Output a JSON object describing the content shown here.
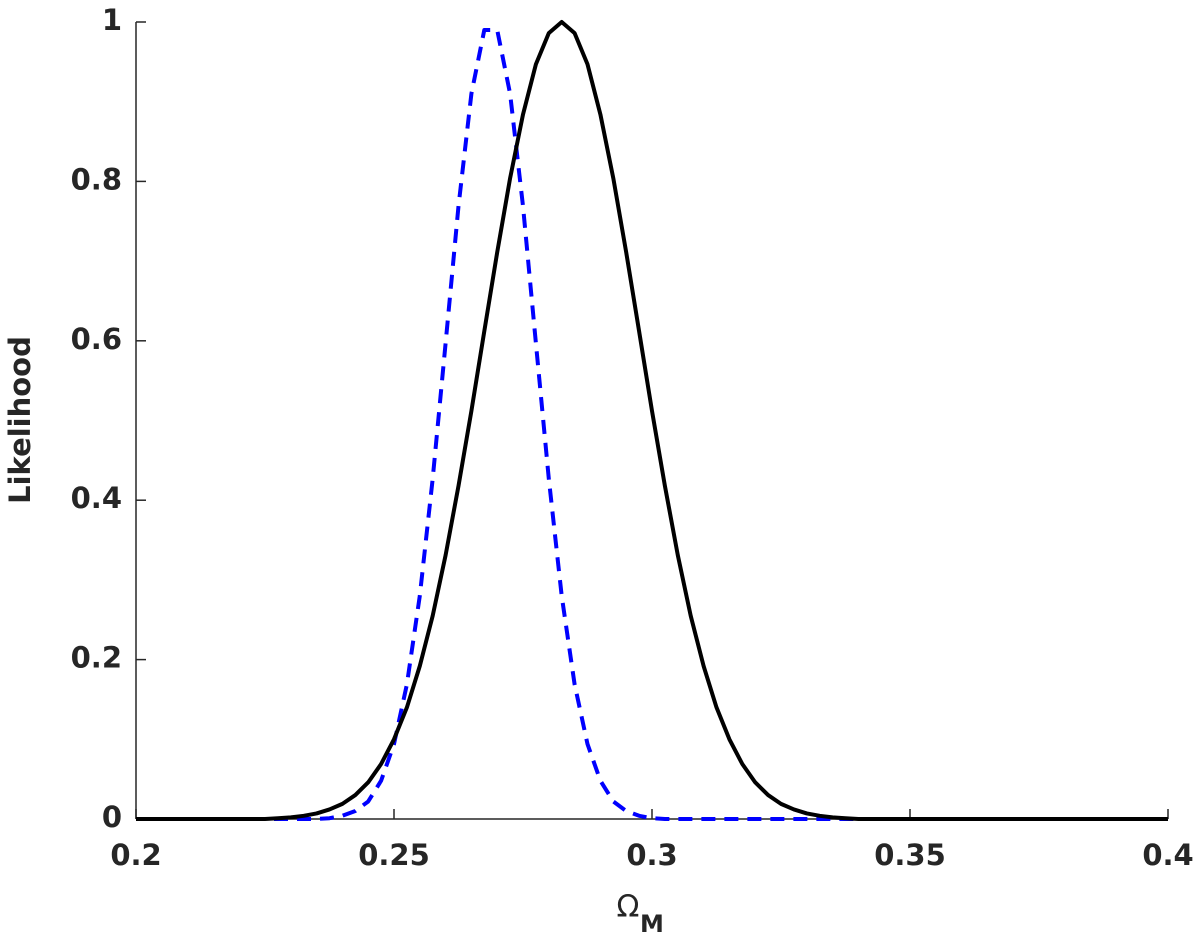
{
  "chart_data": {
    "type": "line",
    "xlabel": "Ω",
    "xlabel_subscript": "M",
    "ylabel": "Likelihood",
    "x": [
      0.2,
      0.2025,
      0.205,
      0.2075,
      0.21,
      0.2125,
      0.215,
      0.2175,
      0.22,
      0.2225,
      0.225,
      0.2275,
      0.23,
      0.2325,
      0.235,
      0.2375,
      0.24,
      0.2425,
      0.245,
      0.2475,
      0.25,
      0.2525,
      0.255,
      0.2575,
      0.26,
      0.2625,
      0.265,
      0.2675,
      0.27,
      0.2725,
      0.275,
      0.2775,
      0.28,
      0.2825,
      0.285,
      0.2875,
      0.29,
      0.2925,
      0.295,
      0.2975,
      0.3,
      0.3025,
      0.305,
      0.3075,
      0.31,
      0.3125,
      0.315,
      0.3175,
      0.32,
      0.3225,
      0.325,
      0.3275,
      0.33,
      0.3325,
      0.335,
      0.3375,
      0.34,
      0.3425,
      0.345,
      0.3475,
      0.35,
      0.3525,
      0.355,
      0.3575,
      0.36,
      0.3625,
      0.365,
      0.3675,
      0.37,
      0.3725,
      0.375,
      0.3775,
      0.38,
      0.3825,
      0.385,
      0.3875,
      0.39,
      0.3925,
      0.395,
      0.3975,
      0.4
    ],
    "series": [
      {
        "color": "#000000",
        "dashed": false,
        "values": [
          0,
          0,
          0,
          0,
          0,
          0,
          0,
          0,
          0,
          0,
          0,
          0.001,
          0.002,
          0.004,
          0.007,
          0.012,
          0.019,
          0.03,
          0.046,
          0.069,
          0.1,
          0.14,
          0.192,
          0.255,
          0.331,
          0.418,
          0.512,
          0.612,
          0.711,
          0.804,
          0.884,
          0.947,
          0.986,
          1,
          0.986,
          0.947,
          0.884,
          0.804,
          0.711,
          0.612,
          0.512,
          0.418,
          0.331,
          0.255,
          0.192,
          0.14,
          0.1,
          0.069,
          0.046,
          0.03,
          0.019,
          0.012,
          0.007,
          0.004,
          0.002,
          0.001,
          0,
          0,
          0,
          0,
          0,
          0,
          0,
          0,
          0,
          0,
          0,
          0,
          0,
          0,
          0,
          0,
          0,
          0,
          0,
          0,
          0,
          0,
          0,
          0,
          0
        ]
      },
      {
        "color": "#0000ff",
        "dashed": true,
        "values": [
          0,
          0,
          0,
          0,
          0,
          0,
          0,
          0,
          0,
          0,
          0,
          0,
          0,
          0,
          0,
          0.001,
          0.004,
          0.01,
          0.022,
          0.048,
          0.094,
          0.169,
          0.28,
          0.427,
          0.597,
          0.769,
          0.91,
          0.99,
          0.99,
          0.91,
          0.769,
          0.597,
          0.427,
          0.28,
          0.169,
          0.094,
          0.048,
          0.022,
          0.01,
          0.004,
          0.001,
          0,
          0,
          0,
          0,
          0,
          0,
          0,
          0,
          0,
          0,
          0,
          0,
          0,
          0,
          0,
          0,
          0,
          0,
          0,
          0,
          0,
          0,
          0,
          0,
          0,
          0,
          0,
          0,
          0,
          0,
          0,
          0,
          0,
          0,
          0,
          0,
          0,
          0,
          0,
          0
        ]
      }
    ],
    "xlim": [
      0.2,
      0.4
    ],
    "ylim": [
      0,
      1
    ],
    "xticks": [
      0.2,
      0.25,
      0.3,
      0.35,
      0.4
    ],
    "yticks": [
      0,
      0.2,
      0.4,
      0.6,
      0.8,
      1
    ],
    "grid": false
  }
}
